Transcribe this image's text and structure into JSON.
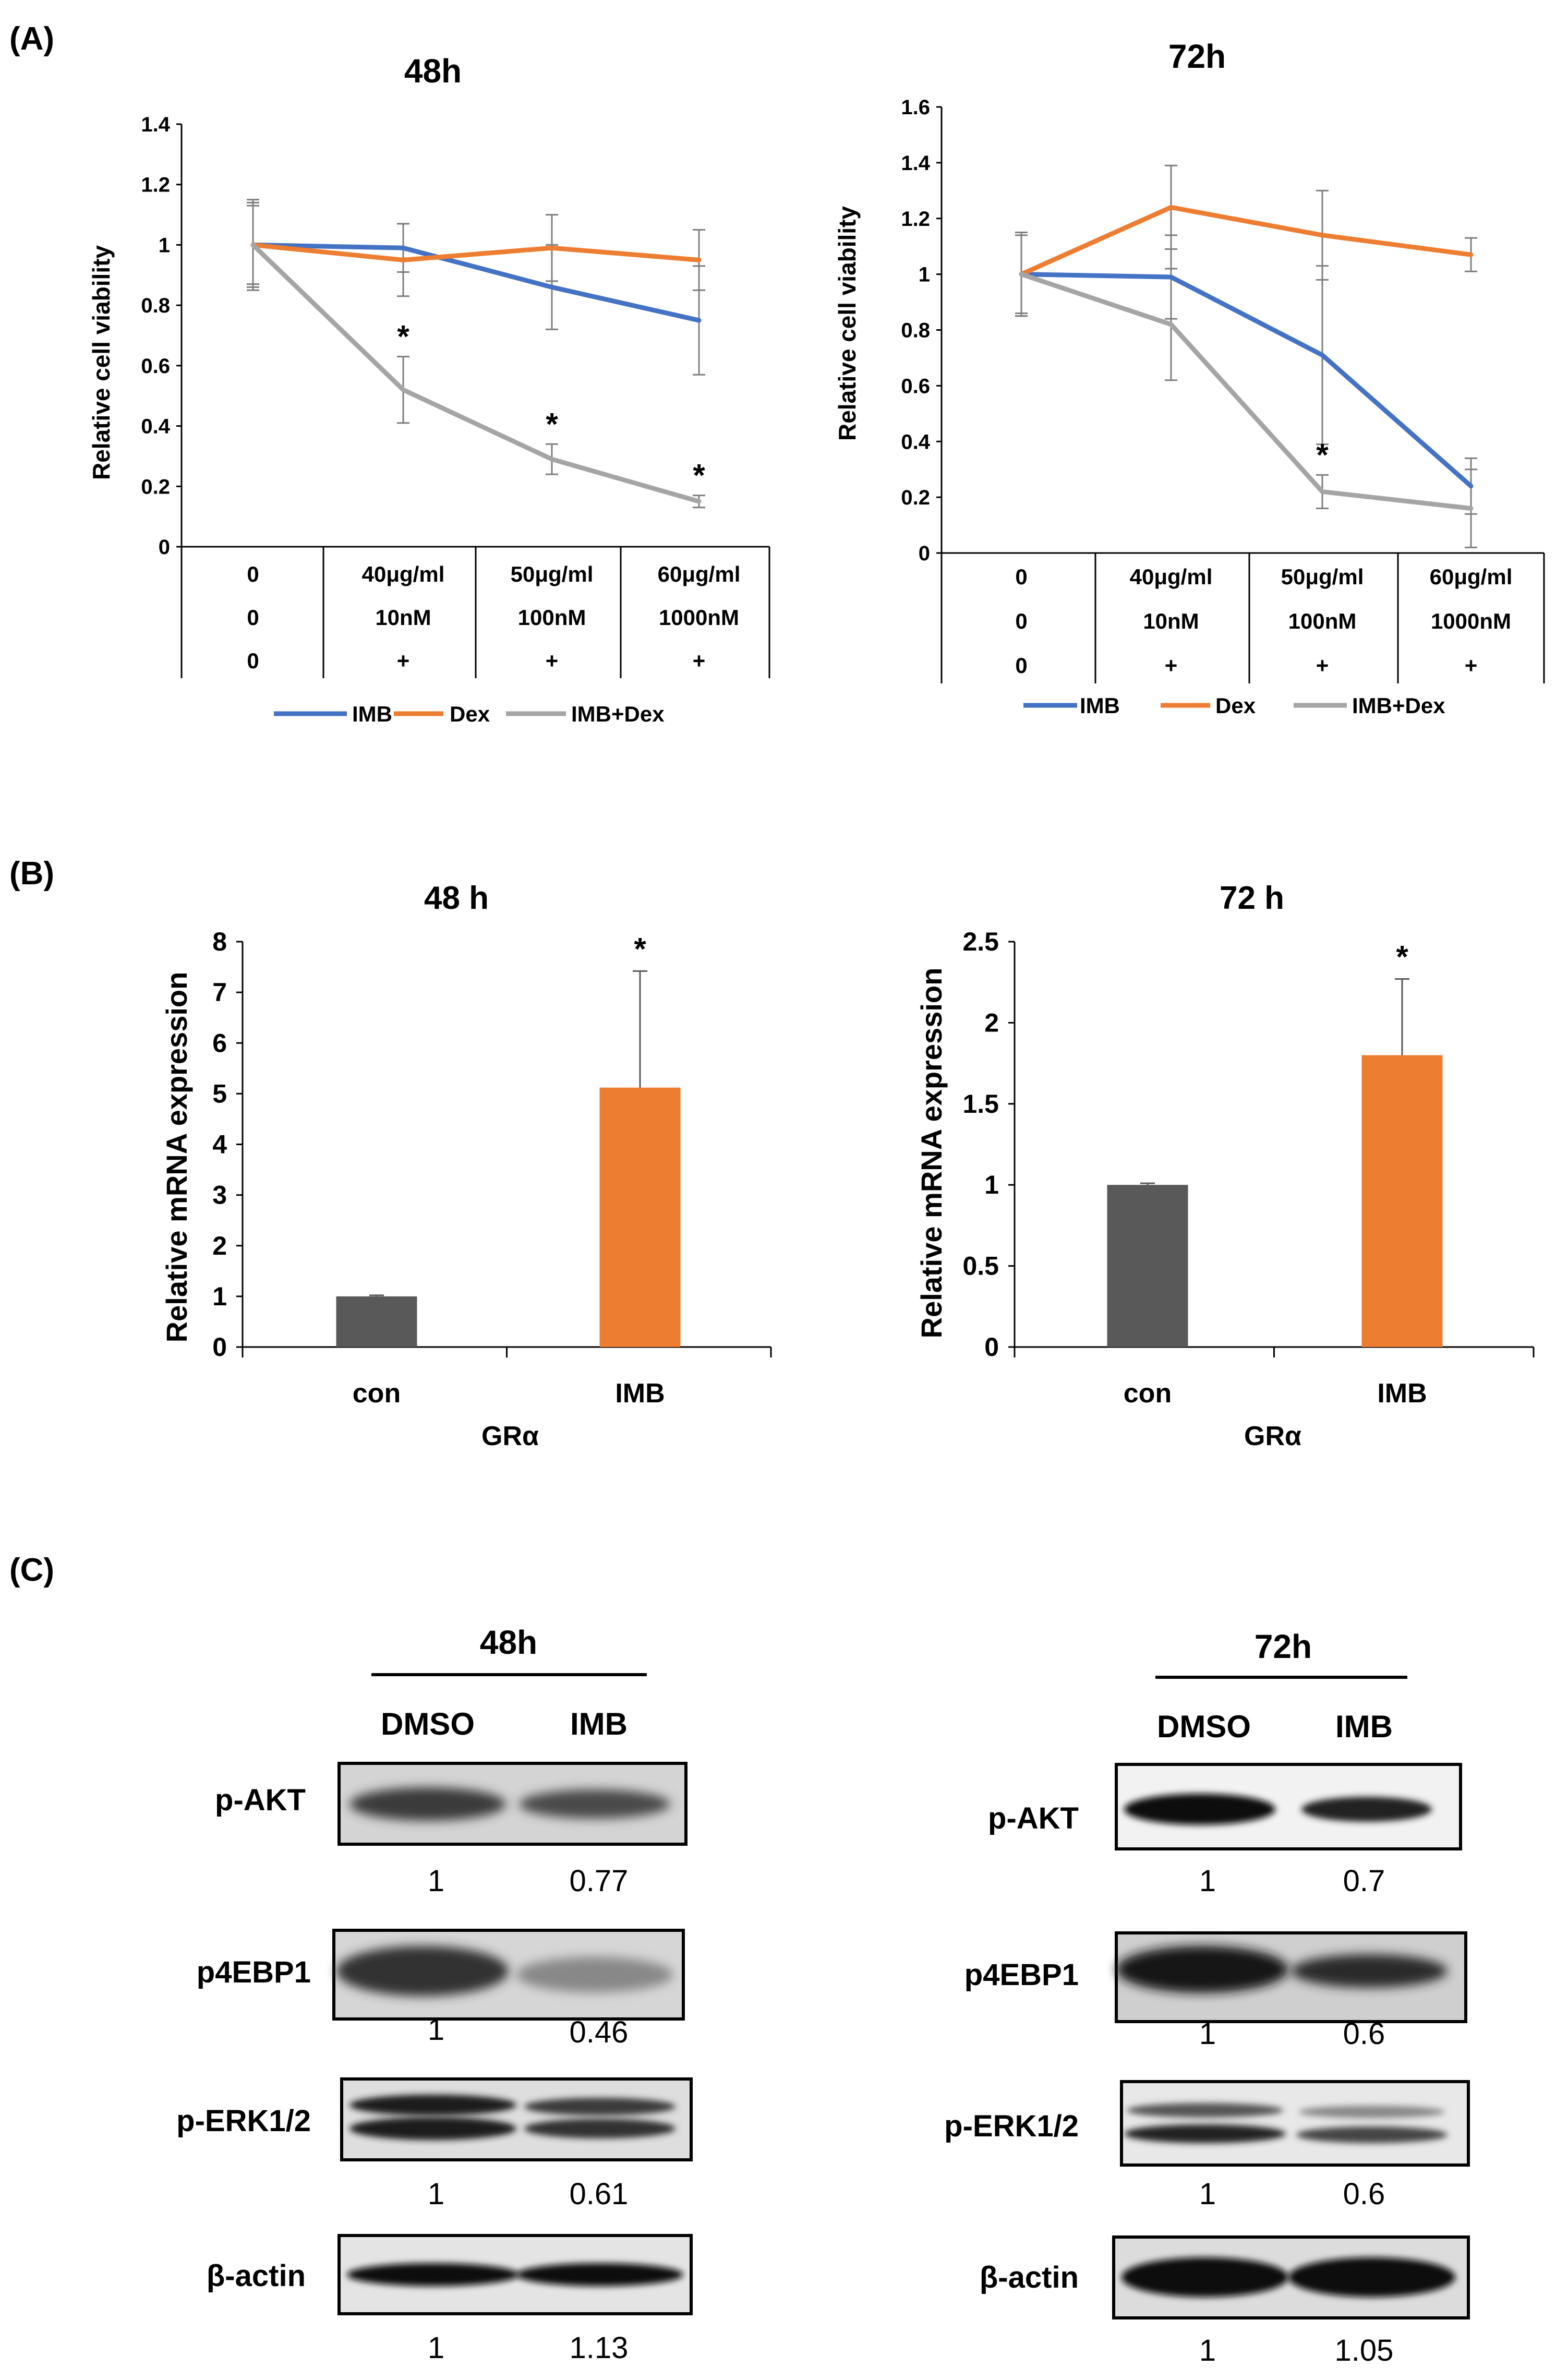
{
  "panels": {
    "A": {
      "label": "(A)"
    },
    "B": {
      "label": "(B)"
    },
    "C": {
      "label": "(C)"
    }
  },
  "chart_data": [
    {
      "id": "A48",
      "type": "line",
      "title": "48h",
      "ylabel": "Relative cell viability",
      "ylim": [
        0,
        1.4
      ],
      "yticks": [
        "0",
        "0.2",
        "0.4",
        "0.6",
        "0.8",
        "1",
        "1.2",
        "1.4"
      ],
      "table": [
        [
          "0",
          "40μg/ml",
          "50μg/ml",
          "60μg/ml"
        ],
        [
          "0",
          "10nM",
          "100nM",
          "1000nM"
        ],
        [
          "0",
          "+",
          "+",
          "+"
        ]
      ],
      "series": [
        {
          "name": "IMB",
          "color": "#4472C4",
          "values": [
            1.0,
            0.99,
            0.86,
            0.75
          ],
          "errors": [
            0.15,
            0.08,
            0.14,
            0.18
          ]
        },
        {
          "name": "Dex",
          "color": "#ED7D31",
          "values": [
            1.0,
            0.95,
            0.99,
            0.95
          ],
          "errors": [
            0.13,
            0.12,
            0.11,
            0.1
          ]
        },
        {
          "name": "IMB+Dex",
          "color": "#A5A5A5",
          "values": [
            1.0,
            0.52,
            0.29,
            0.15
          ],
          "errors": [
            0.14,
            0.11,
            0.05,
            0.02
          ]
        }
      ],
      "annotations": [
        "*",
        "*",
        "*"
      ]
    },
    {
      "id": "A72",
      "type": "line",
      "title": "72h",
      "ylabel": "Relative cell viability",
      "ylim": [
        0,
        1.6
      ],
      "yticks": [
        "0",
        "0.2",
        "0.4",
        "0.6",
        "0.8",
        "1",
        "1.2",
        "1.4",
        "1.6"
      ],
      "table": [
        [
          "0",
          "40μg/ml",
          "50μg/ml",
          "60μg/ml"
        ],
        [
          "0",
          "10nM",
          "100nM",
          "1000nM"
        ],
        [
          "0",
          "+",
          "+",
          "+"
        ]
      ],
      "series": [
        {
          "name": "IMB",
          "color": "#4472C4",
          "values": [
            1.0,
            0.99,
            0.71,
            0.24
          ],
          "errors": [
            0.15,
            0.15,
            0.32,
            0.1
          ]
        },
        {
          "name": "Dex",
          "color": "#ED7D31",
          "values": [
            1.0,
            1.24,
            1.14,
            1.07
          ],
          "errors": [
            0.15,
            0.15,
            0.16,
            0.06
          ]
        },
        {
          "name": "IMB+Dex",
          "color": "#A5A5A5",
          "values": [
            1.0,
            0.82,
            0.22,
            0.16
          ],
          "errors": [
            0.14,
            0.2,
            0.06,
            0.14
          ]
        }
      ],
      "annotations": [
        "*"
      ]
    },
    {
      "id": "B48",
      "type": "bar",
      "title": "48 h",
      "ylabel": "Relative mRNA expression",
      "xlabel": "GRα",
      "ylim": [
        0,
        8
      ],
      "yticks": [
        "0",
        "1",
        "2",
        "3",
        "4",
        "5",
        "6",
        "7",
        "8"
      ],
      "categories": [
        "con",
        "IMB"
      ],
      "values": [
        1.0,
        5.12
      ],
      "errors": [
        0.02,
        2.3
      ],
      "colors": [
        "#595959",
        "#ED7D31"
      ],
      "annotations": [
        "*"
      ]
    },
    {
      "id": "B72",
      "type": "bar",
      "title": "72 h",
      "ylabel": "Relative mRNA expression",
      "xlabel": "GRα",
      "ylim": [
        0,
        2.5
      ],
      "yticks": [
        "0",
        "0.5",
        "1",
        "1.5",
        "2",
        "2.5"
      ],
      "categories": [
        "con",
        "IMB"
      ],
      "values": [
        1.0,
        1.8
      ],
      "errors": [
        0.01,
        0.47
      ],
      "colors": [
        "#595959",
        "#ED7D31"
      ],
      "annotations": [
        "*"
      ]
    }
  ],
  "western": {
    "left": {
      "time": "48h",
      "columns": [
        "DMSO",
        "IMB"
      ],
      "rows": [
        {
          "protein": "p-AKT",
          "values": [
            "1",
            "0.77"
          ]
        },
        {
          "protein": "p4EBP1",
          "values": [
            "1",
            "0.46"
          ]
        },
        {
          "protein": "p-ERK1/2",
          "values": [
            "1",
            "0.61"
          ]
        },
        {
          "protein": "β-actin",
          "values": [
            "1",
            "1.13"
          ]
        }
      ]
    },
    "right": {
      "time": "72h",
      "columns": [
        "DMSO",
        "IMB"
      ],
      "rows": [
        {
          "protein": "p-AKT",
          "values": [
            "1",
            "0.7"
          ]
        },
        {
          "protein": "p4EBP1",
          "values": [
            "1",
            "0.6"
          ]
        },
        {
          "protein": "p-ERK1/2",
          "values": [
            "1",
            "0.6"
          ]
        },
        {
          "protein": "β-actin",
          "values": [
            "1",
            "1.05"
          ]
        }
      ]
    }
  }
}
